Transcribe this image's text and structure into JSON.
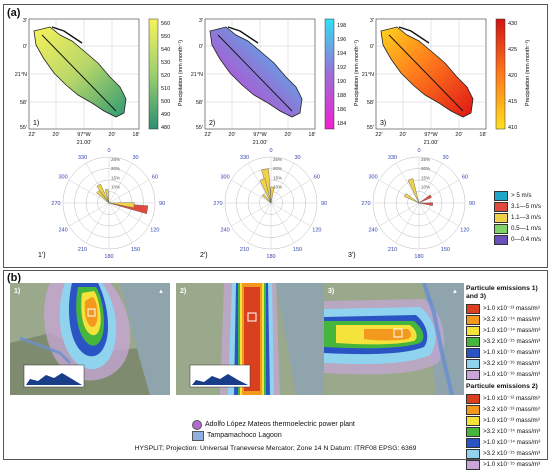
{
  "panel_a": {
    "label": "(a)",
    "maps": [
      {
        "num": "1)",
        "lat_ticks": [
          "3'",
          "0'",
          "21°N",
          "58'",
          "55'"
        ],
        "lon_ticks": [
          "22'",
          "20'",
          "97°W",
          "20'",
          "18'"
        ],
        "bottom": "21.00'",
        "cb_ticks": [
          "560",
          "550",
          "540",
          "530",
          "520",
          "510",
          "500",
          "490",
          "480"
        ],
        "cb_label": "Precipitation (mm month⁻¹)"
      },
      {
        "num": "2)",
        "lat_ticks": [
          "3'",
          "0'",
          "21°N",
          "58'",
          "55'"
        ],
        "lon_ticks": [
          "22'",
          "20'",
          "97°W",
          "20'",
          "18'"
        ],
        "bottom": "21.00'",
        "cb_ticks": [
          "198",
          "196",
          "194",
          "192",
          "190",
          "188",
          "186",
          "184"
        ],
        "cb_label": "Precipitation (mm month⁻¹)"
      },
      {
        "num": "3)",
        "lat_ticks": [
          "3'",
          "0'",
          "21°N",
          "58'",
          "55'"
        ],
        "lon_ticks": [
          "22'",
          "20'",
          "97°W",
          "20'",
          "18'"
        ],
        "bottom": "21.00'",
        "cb_ticks": [
          "430",
          "425",
          "420",
          "415",
          "410"
        ],
        "cb_label": "Precipitation (mm month⁻¹)"
      }
    ],
    "roses": [
      {
        "num": "1')",
        "angles": [
          "0",
          "30",
          "60",
          "90",
          "120",
          "150",
          "180",
          "210",
          "240",
          "270",
          "300",
          "330"
        ],
        "rings": [
          "25%",
          "20%",
          "15%",
          "10%"
        ]
      },
      {
        "num": "2')",
        "angles": [
          "0",
          "30",
          "60",
          "90",
          "120",
          "150",
          "180",
          "210",
          "240",
          "270",
          "300",
          "330"
        ],
        "rings": [
          "25%",
          "20%",
          "15%",
          "10%"
        ]
      },
      {
        "num": "3')",
        "angles": [
          "0",
          "30",
          "60",
          "90",
          "120",
          "150",
          "180",
          "210",
          "240",
          "270",
          "300",
          "330"
        ],
        "rings": [
          "25%",
          "20%",
          "15%",
          "10%"
        ]
      }
    ],
    "wind_legend": [
      {
        "label": "> 5 m/s",
        "color": "#1ea7c9"
      },
      {
        "label": "3.1—5 m/s",
        "color": "#e04a3c"
      },
      {
        "label": "1.1—3 m/s",
        "color": "#f0d24a"
      },
      {
        "label": "0.5—1 m/s",
        "color": "#7fd36a"
      },
      {
        "label": "0—0.4 m/s",
        "color": "#6b4fbd"
      }
    ]
  },
  "panel_b": {
    "label": "(b)",
    "maps": [
      {
        "num": "1)"
      },
      {
        "num": "2)"
      },
      {
        "num": "3)"
      }
    ],
    "legend1_title": "Particule emissions 1) and 3)",
    "legend1": [
      {
        "label": ">1.0 x10⁻¹³ mass/m³",
        "color": "#d9411e"
      },
      {
        "label": ">3.2 x10⁻¹⁴ mass/m³",
        "color": "#f39a1e"
      },
      {
        "label": ">1.0 x10⁻¹⁴ mass/m³",
        "color": "#f5e23a"
      },
      {
        "label": ">3.2 x10⁻¹⁵ mass/m³",
        "color": "#46b53c"
      },
      {
        "label": ">1.0 x10⁻¹⁵ mass/m³",
        "color": "#2a53c4"
      },
      {
        "label": ">3.2 x10⁻¹⁶ mass/m³",
        "color": "#8fd3ef"
      },
      {
        "label": ">1.0 x10⁻¹⁶ mass/m³",
        "color": "#c8a7d8"
      }
    ],
    "legend2_title": "Particule emissions 2)",
    "legend2": [
      {
        "label": ">1.0 x10⁻¹² mass/m³",
        "color": "#d9411e"
      },
      {
        "label": ">3.2 x10⁻¹³ mass/m³",
        "color": "#f39a1e"
      },
      {
        "label": ">1.0 x10⁻¹³ mass/m³",
        "color": "#f5e23a"
      },
      {
        "label": ">3.2 x10⁻¹⁴ mass/m³",
        "color": "#46b53c"
      },
      {
        "label": ">1.0 x10⁻¹⁴ mass/m³",
        "color": "#2a53c4"
      },
      {
        "label": ">3.2 x10⁻¹⁵ mass/m³",
        "color": "#8fd3ef"
      },
      {
        "label": ">1.0 x10⁻¹⁵ mass/m³",
        "color": "#c8a7d8"
      }
    ],
    "plant_label": "Adolfo López Mateos thermoelectric power plant",
    "lagoon_label": "Tampamachoco Lagoon",
    "footer": "HYSPLIT; Projection: Universal Traneverse Mercator; Zone 14 N Datum: ITRF08 EPSG: 6369"
  }
}
